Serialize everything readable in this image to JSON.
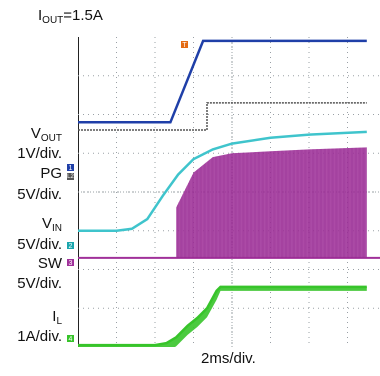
{
  "title": {
    "prefix": "I",
    "sub": "OUT",
    "suffix": "=1.5A"
  },
  "xlabel": "2ms/div.",
  "channel_labels": {
    "vout": {
      "name": "V",
      "sub": "OUT",
      "scale": "1V/div."
    },
    "pg": {
      "name": "PG",
      "scale": "5V/div."
    },
    "vin": {
      "name": "V",
      "sub": "IN",
      "scale": "5V/div."
    },
    "sw": {
      "name": "SW",
      "scale": "5V/div."
    },
    "il": {
      "name": "I",
      "sub": "L",
      "scale": "1A/div."
    }
  },
  "markers": {
    "ch1": "1",
    "ch2": "2",
    "ch3": "3",
    "ch4": "4",
    "pg": "L2",
    "trigger": "T"
  },
  "colors": {
    "vout": "#1f3fa8",
    "pg": "#555555",
    "vin": "#3fc4cc",
    "sw": "#a0309a",
    "il": "#37c42a",
    "trigger": "#e46a12",
    "grid": "#9aa0a6"
  },
  "chart_data": {
    "type": "line",
    "title": "I_OUT=1.5A",
    "xlabel": "2ms/div.",
    "ylabel": "",
    "x_unit": "divisions",
    "grid": true,
    "xlim": [
      0,
      7.5
    ],
    "ylim": [
      0,
      8
    ],
    "series": [
      {
        "name": "V_OUT",
        "key": "vout",
        "x": [
          0,
          2.4,
          3.25,
          7.5
        ],
        "values": [
          5.8,
          5.8,
          7.9,
          7.9
        ]
      },
      {
        "name": "PG",
        "key": "pg",
        "x": [
          0,
          3.35,
          3.35,
          7.5
        ],
        "values": [
          5.6,
          5.6,
          6.3,
          6.3
        ]
      },
      {
        "name": "V_IN",
        "key": "vin",
        "x": [
          0,
          1.0,
          1.4,
          1.8,
          2.2,
          2.6,
          3.0,
          3.5,
          4.0,
          5.0,
          6.0,
          7.5
        ],
        "values": [
          3.0,
          3.0,
          3.05,
          3.3,
          3.9,
          4.45,
          4.85,
          5.1,
          5.25,
          5.4,
          5.48,
          5.55
        ]
      },
      {
        "name": "SW",
        "key": "sw",
        "x": [
          0,
          2.55,
          2.55,
          3.0,
          3.5,
          4.0,
          5.0,
          6.0,
          7.5
        ],
        "low": [
          2.3,
          2.3,
          2.3,
          2.3,
          2.3,
          2.3,
          2.3,
          2.3,
          2.3
        ],
        "values": [
          2.3,
          2.3,
          3.6,
          4.5,
          4.9,
          5.0,
          5.05,
          5.1,
          5.15
        ]
      },
      {
        "name": "I_L",
        "key": "il",
        "x": [
          0,
          2.0,
          2.3,
          2.55,
          2.85,
          3.1,
          3.35,
          3.6,
          3.7,
          7.5
        ],
        "values": [
          0.05,
          0.05,
          0.1,
          0.25,
          0.55,
          0.75,
          1.0,
          1.45,
          1.55,
          1.55
        ]
      }
    ]
  }
}
